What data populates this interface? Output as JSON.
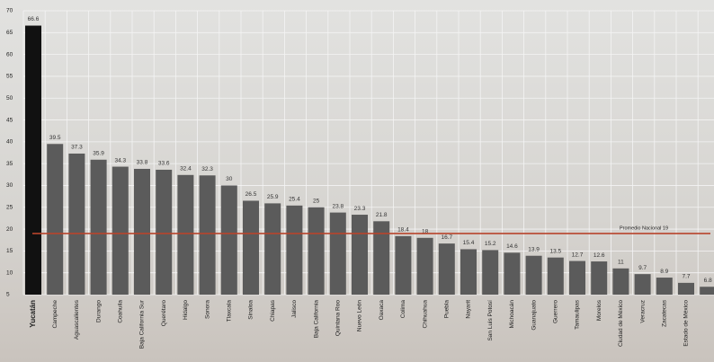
{
  "chart_data": {
    "type": "bar",
    "categories": [
      "Yucatán",
      "Campeche",
      "Aguascalientes",
      "Durango",
      "Coahuila",
      "Baja California Sur",
      "Querétaro",
      "Hidalgo",
      "Sonora",
      "Tlaxcala",
      "Sinaloa",
      "Chiapas",
      "Jalisco",
      "Baja California",
      "Quintana Roo",
      "Nuevo León",
      "Oaxaca",
      "Colima",
      "Chihuahua",
      "Puebla",
      "Nayarit",
      "San Luis Potosí",
      "Michoacán",
      "Guanajuato",
      "Guerrero",
      "Tamaulipas",
      "Morelos",
      "Ciudad de México",
      "Veracruz",
      "Zacatecas",
      "Estado de México",
      null
    ],
    "values": [
      66.6,
      39.5,
      37.3,
      35.9,
      34.3,
      33.8,
      33.6,
      32.4,
      32.3,
      30,
      26.5,
      25.9,
      25.4,
      25,
      23.8,
      23.3,
      21.8,
      18.4,
      18,
      16.7,
      15.4,
      15.2,
      14.6,
      13.9,
      13.5,
      12.7,
      12.6,
      11,
      9.7,
      8.9,
      7.7,
      6.8
    ],
    "colors": [
      "#111111",
      "#5b5b5b",
      "#5b5b5b",
      "#5b5b5b",
      "#5b5b5b",
      "#5b5b5b",
      "#5b5b5b",
      "#5b5b5b",
      "#5b5b5b",
      "#5b5b5b",
      "#5b5b5b",
      "#5b5b5b",
      "#5b5b5b",
      "#5b5b5b",
      "#5b5b5b",
      "#5b5b5b",
      "#5b5b5b",
      "#5b5b5b",
      "#5b5b5b",
      "#5b5b5b",
      "#5b5b5b",
      "#5b5b5b",
      "#5b5b5b",
      "#5b5b5b",
      "#5b5b5b",
      "#5b5b5b",
      "#5b5b5b",
      "#5b5b5b",
      "#5b5b5b",
      "#5b5b5b",
      "#5b5b5b",
      "#5b5b5b"
    ],
    "ylim": [
      5,
      70
    ],
    "yticks": [
      5,
      10,
      15,
      20,
      25,
      30,
      35,
      40,
      45,
      50,
      55,
      60,
      65,
      70
    ],
    "grid": true,
    "reference": {
      "value": 19,
      "label": "Promedio Nacional 19",
      "color": "#b8442c"
    }
  }
}
